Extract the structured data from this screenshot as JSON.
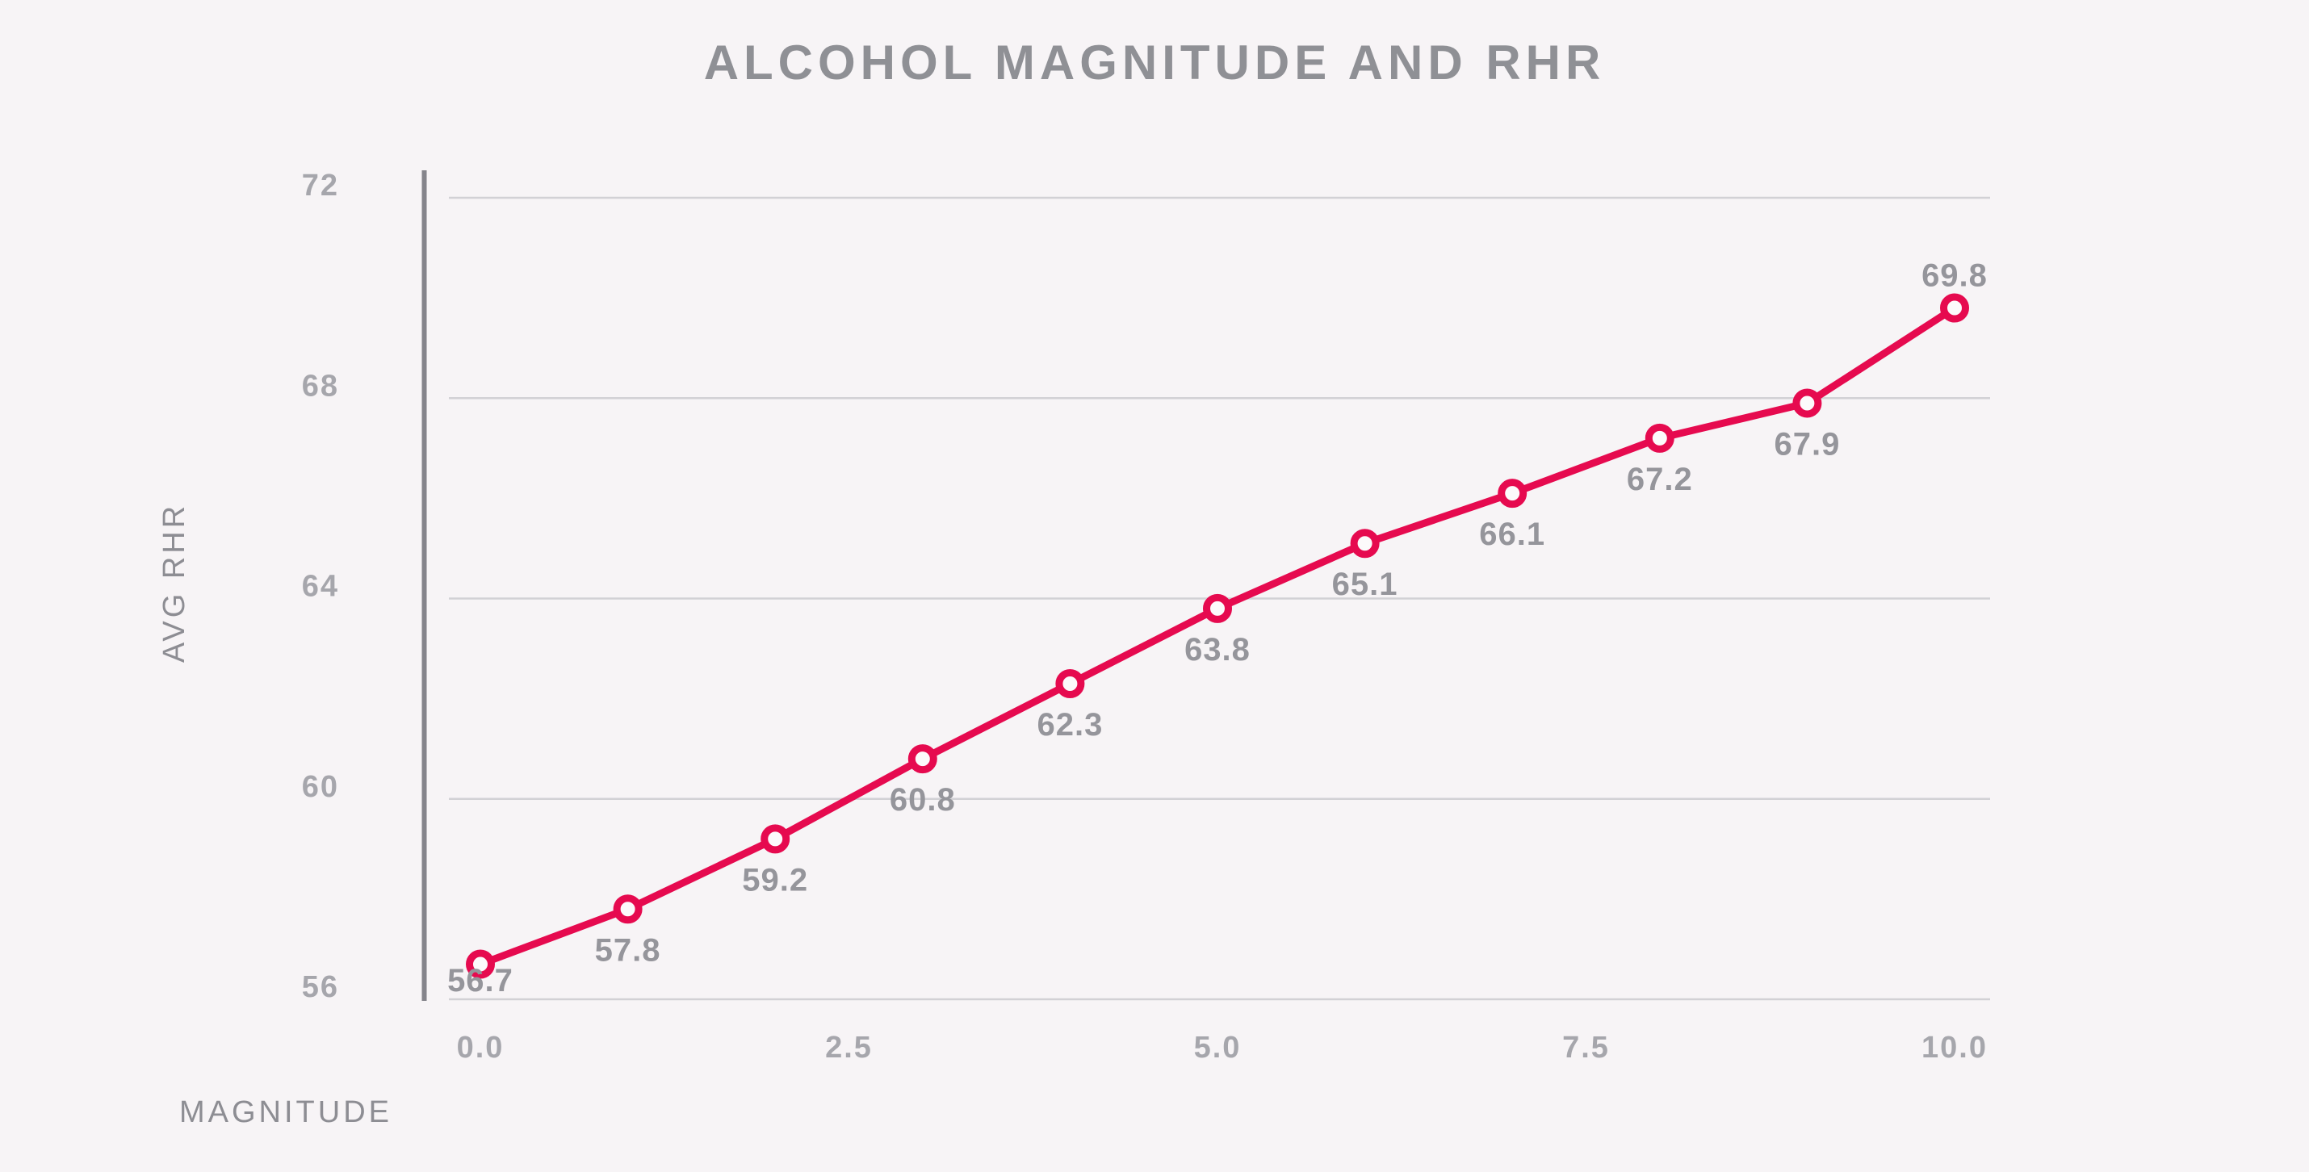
{
  "chart_data": {
    "type": "line",
    "title": "ALCOHOL MAGNITUDE AND RHR",
    "xlabel": "MAGNITUDE",
    "ylabel": "AVG RHR",
    "x": [
      0,
      1,
      2,
      3,
      4,
      5,
      6,
      7,
      8,
      9,
      10
    ],
    "values": [
      56.7,
      57.8,
      59.2,
      60.8,
      62.3,
      63.8,
      65.1,
      66.1,
      67.2,
      67.9,
      69.8
    ],
    "point_labels": [
      "56.7",
      "57.8",
      "59.2",
      "60.8",
      "62.3",
      "63.8",
      "65.1",
      "66.1",
      "67.2",
      "67.9",
      "69.8"
    ],
    "label_positions": [
      "below",
      "below",
      "below",
      "below",
      "below",
      "below",
      "below",
      "below",
      "below",
      "below",
      "above"
    ],
    "xlim": [
      0,
      10
    ],
    "ylim": [
      56,
      72
    ],
    "xticks": [
      {
        "value": 0,
        "label": "0.0"
      },
      {
        "value": 2.5,
        "label": "2.5"
      },
      {
        "value": 5,
        "label": "5.0"
      },
      {
        "value": 7.5,
        "label": "7.5"
      },
      {
        "value": 10,
        "label": "10.0"
      }
    ],
    "yticks": [
      {
        "value": 72,
        "label": "72"
      },
      {
        "value": 68,
        "label": "68"
      },
      {
        "value": 64,
        "label": "64"
      },
      {
        "value": 60,
        "label": "60"
      },
      {
        "value": 56,
        "label": "56"
      }
    ],
    "grid": "horizontal",
    "legend": "none",
    "colors": {
      "line": "#e60a4f",
      "marker_fill": "#fcfafb",
      "background": "#f7f4f6",
      "gridline": "#d2d1d5",
      "axis_line": "#85848b",
      "tick_label": "#a6a6ac",
      "data_label": "#95959b",
      "title": "#8f9095",
      "axis_title": "#8d8d93"
    }
  }
}
